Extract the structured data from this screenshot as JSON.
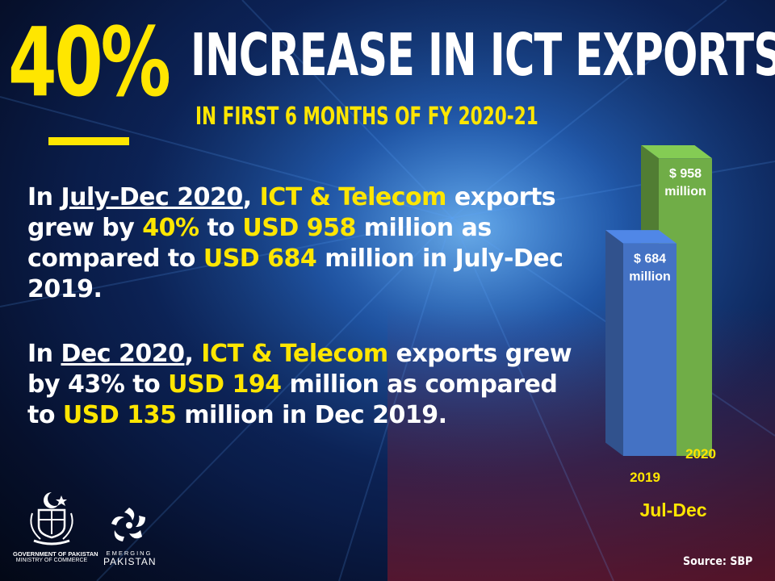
{
  "header": {
    "big_percent": "40%",
    "headline": "INCREASE IN ICT EXPORTS",
    "subheadline": "IN FIRST 6 MONTHS OF FY 2020-21"
  },
  "paragraph1": {
    "p1": "In ",
    "period": "July-Dec 2020",
    "p2": ", ",
    "sector": "ICT & Telecom",
    "p3": " exports grew by ",
    "growth": "40%",
    "p4": " to ",
    "current": "USD 958",
    "p5": " million as compared to ",
    "previous": "USD 684",
    "p6": " million in July-Dec 2019."
  },
  "paragraph2": {
    "p1": "In ",
    "period": "Dec 2020",
    "p2": ", ",
    "sector": "ICT & Telecom",
    "p3": " exports grew by 43% to ",
    "current": "USD 194",
    "p4": " million as compared to ",
    "previous": "USD 135",
    "p5": " million in Dec 2019."
  },
  "chart_data": {
    "type": "bar",
    "categories": [
      "2019",
      "2020"
    ],
    "values": [
      684,
      958
    ],
    "data_labels": [
      [
        "$ 684",
        "million"
      ],
      [
        "$ 958",
        "million"
      ]
    ],
    "xlabel": "Jul-Dec",
    "colors": [
      "#4472c4",
      "#70ad47"
    ],
    "ylim": [
      0,
      1000
    ]
  },
  "logos": {
    "gov_line1": "GOVERNMENT OF PAKISTAN",
    "gov_line2": "MINISTRY OF COMMERCE",
    "ep_line1": "EMERGING",
    "ep_line2": "PAKISTAN"
  },
  "source": "Source: SBP"
}
